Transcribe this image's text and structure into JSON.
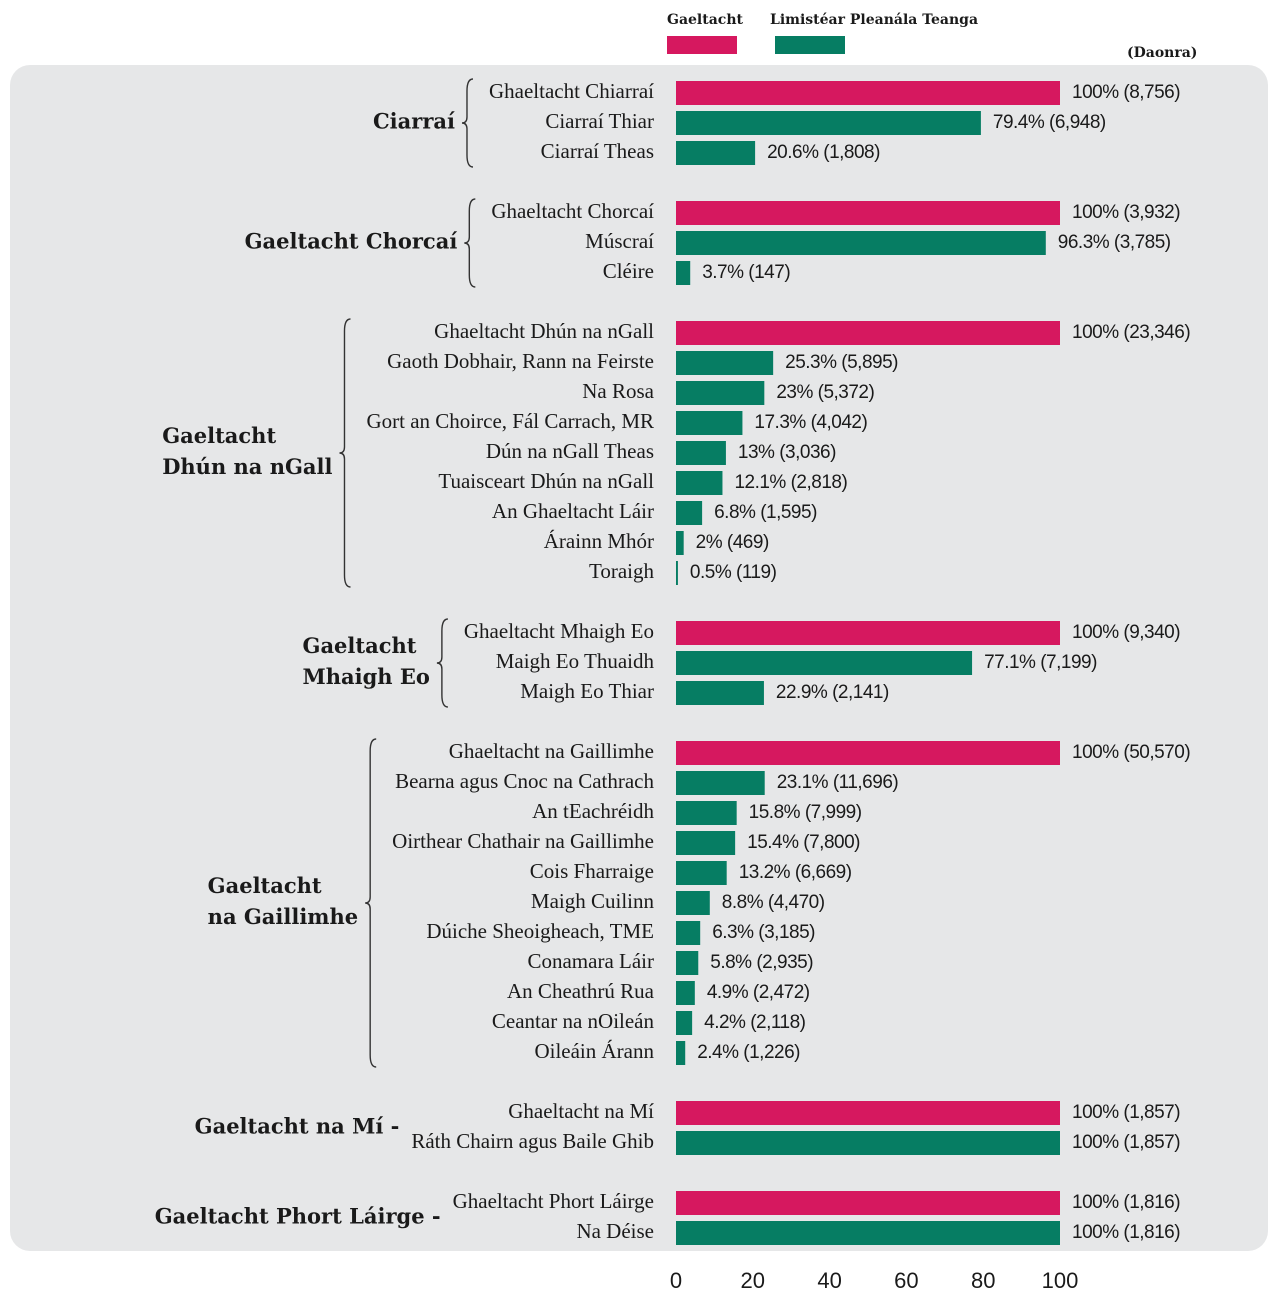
{
  "chart_data": {
    "type": "bar",
    "orientation": "horizontal",
    "legend": [
      {
        "name": "Gaeltacht",
        "color": "#d6185f"
      },
      {
        "name": "Limistéar Pleanála Teanga",
        "color": "#067d63"
      }
    ],
    "unit_note": "(Daonra)",
    "xlim": [
      0,
      100
    ],
    "xticks": [
      0,
      20,
      40,
      60,
      80,
      100
    ],
    "groups": [
      {
        "label": [
          "Ciarraí"
        ],
        "brace": true,
        "categories": [
          "Ghaeltacht Chiarraí",
          "Ciarraí Thiar",
          "Ciarraí Theas"
        ],
        "values": [
          100,
          79.4,
          20.6
        ],
        "value_labels": [
          "100% (8,756)",
          "79.4% (6,948)",
          "20.6% (1,808)"
        ],
        "colors": [
          "#d6185f",
          "#067d63",
          "#067d63"
        ]
      },
      {
        "label": [
          "Gaeltacht Chorcaí"
        ],
        "brace": true,
        "categories": [
          "Ghaeltacht Chorcaí",
          "Múscraí",
          "Cléire"
        ],
        "values": [
          100,
          96.3,
          3.7
        ],
        "value_labels": [
          "100% (3,932)",
          "96.3% (3,785)",
          "3.7% (147)"
        ],
        "colors": [
          "#d6185f",
          "#067d63",
          "#067d63"
        ]
      },
      {
        "label": [
          "Gaeltacht",
          "Dhún na nGall"
        ],
        "brace": true,
        "categories": [
          "Ghaeltacht Dhún na nGall",
          "Gaoth Dobhair, Rann na Feirste",
          "Na Rosa",
          "Gort an Choirce, Fál Carrach, MR",
          "Dún na nGall Theas",
          "Tuaisceart Dhún na nGall",
          "An Ghaeltacht Láir",
          "Árainn Mhór",
          "Toraigh"
        ],
        "values": [
          100,
          25.3,
          23,
          17.3,
          13,
          12.1,
          6.8,
          2,
          0.5
        ],
        "value_labels": [
          "100% (23,346)",
          "25.3% (5,895)",
          "23% (5,372)",
          "17.3% (4,042)",
          "13% (3,036)",
          "12.1% (2,818)",
          "6.8% (1,595)",
          "2% (469)",
          "0.5% (119)"
        ],
        "colors": [
          "#d6185f",
          "#067d63",
          "#067d63",
          "#067d63",
          "#067d63",
          "#067d63",
          "#067d63",
          "#067d63",
          "#067d63"
        ]
      },
      {
        "label": [
          "Gaeltacht",
          "Mhaigh Eo"
        ],
        "brace": true,
        "categories": [
          "Ghaeltacht Mhaigh Eo",
          "Maigh Eo Thuaidh",
          "Maigh Eo Thiar"
        ],
        "values": [
          100,
          77.1,
          22.9
        ],
        "value_labels": [
          "100% (9,340)",
          "77.1% (7,199)",
          "22.9% (2,141)"
        ],
        "colors": [
          "#d6185f",
          "#067d63",
          "#067d63"
        ]
      },
      {
        "label": [
          "Gaeltacht",
          "na Gaillimhe"
        ],
        "brace": true,
        "categories": [
          "Ghaeltacht na Gaillimhe",
          "Bearna agus Cnoc na Cathrach",
          "An tEachréidh",
          "Oirthear Chathair na Gaillimhe",
          "Cois Fharraige",
          "Maigh Cuilinn",
          "Dúiche Sheoigheach, TME",
          "Conamara Láir",
          "An Cheathrú Rua",
          "Ceantar na nOileán",
          "Oileáin Árann"
        ],
        "values": [
          100,
          23.1,
          15.8,
          15.4,
          13.2,
          8.8,
          6.3,
          5.8,
          4.9,
          4.2,
          2.4
        ],
        "value_labels": [
          "100% (50,570)",
          "23.1% (11,696)",
          "15.8% (7,999)",
          "15.4% (7,800)",
          "13.2% (6,669)",
          "8.8% (4,470)",
          "6.3% (3,185)",
          "5.8% (2,935)",
          "4.9% (2,472)",
          "4.2% (2,118)",
          "2.4% (1,226)"
        ],
        "colors": [
          "#d6185f",
          "#067d63",
          "#067d63",
          "#067d63",
          "#067d63",
          "#067d63",
          "#067d63",
          "#067d63",
          "#067d63",
          "#067d63",
          "#067d63"
        ]
      },
      {
        "label": [
          "Gaeltacht na Mí -"
        ],
        "brace": false,
        "categories": [
          "Ghaeltacht na Mí",
          "Ráth Chairn agus Baile Ghib"
        ],
        "values": [
          100,
          100
        ],
        "value_labels": [
          "100% (1,857)",
          "100% (1,857)"
        ],
        "colors": [
          "#d6185f",
          "#067d63"
        ]
      },
      {
        "label": [
          "Gaeltacht Phort Láirge -"
        ],
        "brace": false,
        "categories": [
          "Ghaeltacht Phort Láirge",
          "Na Déise"
        ],
        "values": [
          100,
          100
        ],
        "value_labels": [
          "100% (1,816)",
          "100% (1,816)"
        ],
        "colors": [
          "#d6185f",
          "#067d63"
        ]
      }
    ]
  }
}
